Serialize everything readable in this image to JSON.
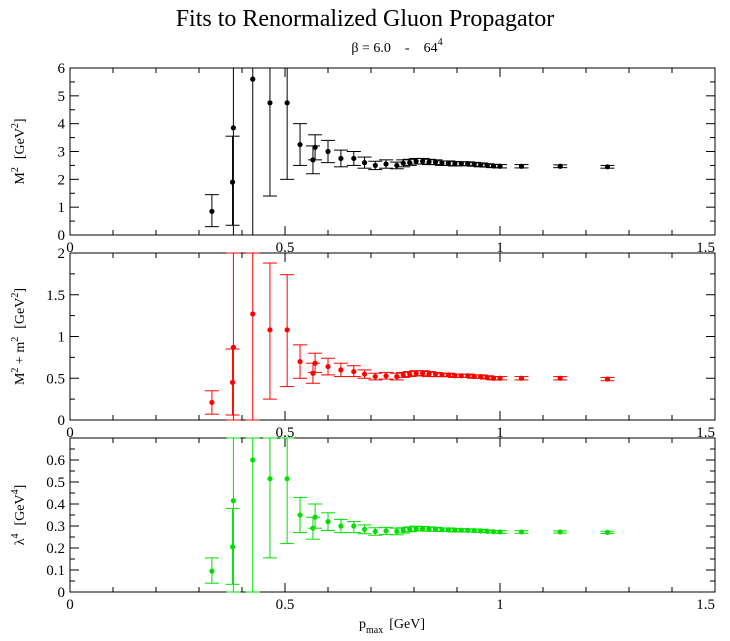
{
  "figure": {
    "title": "Fits to Renormalized Gluon Propagator",
    "subtitle_lhs": "β = 6.0",
    "subtitle_sep": "-",
    "subtitle_base": "64",
    "subtitle_exp": "4",
    "xlabel_main": "p",
    "xlabel_sub": "max",
    "xlabel_unit": "[GeV]"
  },
  "chart_data": [
    {
      "type": "scatter",
      "color": "#000000",
      "ylabel_text": "M",
      "ylabel_sup": "2",
      "ylabel_unit_pre": "[GeV",
      "ylabel_unit_sup": "2",
      "ylabel_unit_post": "]",
      "xlim": [
        0,
        1.5
      ],
      "ylim": [
        0,
        6
      ],
      "xticks": [
        "0",
        "0.5",
        "1",
        "1.5"
      ],
      "yticks": [
        "0",
        "1",
        "2",
        "3",
        "4",
        "5",
        "6"
      ],
      "grid": false,
      "points": [
        {
          "x": 0.33,
          "y": 0.85,
          "lo": 0.3,
          "hi": 1.45
        },
        {
          "x": 0.378,
          "y": 1.9,
          "lo": 0.35,
          "hi": 3.55
        },
        {
          "x": 0.38,
          "y": 3.85,
          "lo": 0.0,
          "hi": 6.0
        },
        {
          "x": 0.425,
          "y": 5.6,
          "lo": 0.0,
          "hi": 6.0
        },
        {
          "x": 0.465,
          "y": 4.75,
          "lo": 1.4,
          "hi": 6.0
        },
        {
          "x": 0.505,
          "y": 4.75,
          "lo": 2.0,
          "hi": 6.0
        },
        {
          "x": 0.535,
          "y": 3.25,
          "lo": 2.5,
          "hi": 4.0
        },
        {
          "x": 0.565,
          "y": 2.7,
          "lo": 2.2,
          "hi": 3.2
        },
        {
          "x": 0.57,
          "y": 3.15,
          "lo": 2.7,
          "hi": 3.6
        },
        {
          "x": 0.6,
          "y": 3.0,
          "lo": 2.6,
          "hi": 3.4
        },
        {
          "x": 0.63,
          "y": 2.75,
          "lo": 2.45,
          "hi": 3.05
        },
        {
          "x": 0.66,
          "y": 2.75,
          "lo": 2.5,
          "hi": 3.0
        },
        {
          "x": 0.685,
          "y": 2.6,
          "lo": 2.4,
          "hi": 2.8
        },
        {
          "x": 0.71,
          "y": 2.5,
          "lo": 2.35,
          "hi": 2.65
        },
        {
          "x": 0.735,
          "y": 2.55,
          "lo": 2.4,
          "hi": 2.7
        },
        {
          "x": 0.76,
          "y": 2.5,
          "lo": 2.38,
          "hi": 2.62
        },
        {
          "x": 0.775,
          "y": 2.58,
          "lo": 2.45,
          "hi": 2.7
        },
        {
          "x": 0.79,
          "y": 2.6,
          "lo": 2.5,
          "hi": 2.72
        },
        {
          "x": 0.805,
          "y": 2.65,
          "lo": 2.55,
          "hi": 2.75
        },
        {
          "x": 0.82,
          "y": 2.65,
          "lo": 2.55,
          "hi": 2.75
        },
        {
          "x": 0.835,
          "y": 2.62,
          "lo": 2.53,
          "hi": 2.72
        },
        {
          "x": 0.85,
          "y": 2.62,
          "lo": 2.53,
          "hi": 2.7
        },
        {
          "x": 0.865,
          "y": 2.58,
          "lo": 2.5,
          "hi": 2.66
        },
        {
          "x": 0.88,
          "y": 2.58,
          "lo": 2.5,
          "hi": 2.66
        },
        {
          "x": 0.895,
          "y": 2.56,
          "lo": 2.48,
          "hi": 2.64
        },
        {
          "x": 0.91,
          "y": 2.56,
          "lo": 2.49,
          "hi": 2.63
        },
        {
          "x": 0.925,
          "y": 2.56,
          "lo": 2.49,
          "hi": 2.63
        },
        {
          "x": 0.94,
          "y": 2.54,
          "lo": 2.47,
          "hi": 2.61
        },
        {
          "x": 0.955,
          "y": 2.52,
          "lo": 2.45,
          "hi": 2.59
        },
        {
          "x": 0.97,
          "y": 2.5,
          "lo": 2.44,
          "hi": 2.56
        },
        {
          "x": 0.985,
          "y": 2.48,
          "lo": 2.42,
          "hi": 2.54
        },
        {
          "x": 1.0,
          "y": 2.47,
          "lo": 2.41,
          "hi": 2.53
        },
        {
          "x": 1.05,
          "y": 2.47,
          "lo": 2.41,
          "hi": 2.53
        },
        {
          "x": 1.14,
          "y": 2.47,
          "lo": 2.42,
          "hi": 2.52
        },
        {
          "x": 1.25,
          "y": 2.45,
          "lo": 2.4,
          "hi": 2.5
        }
      ]
    },
    {
      "type": "scatter",
      "color": "#ff0000",
      "ylabel_text": "M",
      "ylabel_sup": "2",
      "ylabel_mid": " + m",
      "ylabel_sup2": "2",
      "ylabel_unit_pre": "[GeV",
      "ylabel_unit_sup": "2",
      "ylabel_unit_post": "]",
      "xlim": [
        0,
        1.5
      ],
      "ylim": [
        0,
        2
      ],
      "xticks": [
        "0",
        "0.5",
        "1",
        "1.5"
      ],
      "yticks": [
        "0",
        "0.5",
        "1",
        "1.5",
        "2"
      ],
      "grid": false,
      "points": [
        {
          "x": 0.33,
          "y": 0.21,
          "lo": 0.07,
          "hi": 0.35
        },
        {
          "x": 0.378,
          "y": 0.45,
          "lo": 0.06,
          "hi": 0.85
        },
        {
          "x": 0.38,
          "y": 0.87,
          "lo": 0.0,
          "hi": 2.0
        },
        {
          "x": 0.425,
          "y": 1.27,
          "lo": 0.0,
          "hi": 2.0
        },
        {
          "x": 0.465,
          "y": 1.08,
          "lo": 0.25,
          "hi": 1.88
        },
        {
          "x": 0.505,
          "y": 1.08,
          "lo": 0.4,
          "hi": 1.74
        },
        {
          "x": 0.535,
          "y": 0.7,
          "lo": 0.5,
          "hi": 0.9
        },
        {
          "x": 0.565,
          "y": 0.56,
          "lo": 0.44,
          "hi": 0.68
        },
        {
          "x": 0.57,
          "y": 0.68,
          "lo": 0.57,
          "hi": 0.8
        },
        {
          "x": 0.6,
          "y": 0.64,
          "lo": 0.54,
          "hi": 0.74
        },
        {
          "x": 0.63,
          "y": 0.6,
          "lo": 0.52,
          "hi": 0.68
        },
        {
          "x": 0.66,
          "y": 0.58,
          "lo": 0.52,
          "hi": 0.65
        },
        {
          "x": 0.685,
          "y": 0.55,
          "lo": 0.5,
          "hi": 0.6
        },
        {
          "x": 0.71,
          "y": 0.52,
          "lo": 0.48,
          "hi": 0.56
        },
        {
          "x": 0.735,
          "y": 0.53,
          "lo": 0.49,
          "hi": 0.57
        },
        {
          "x": 0.76,
          "y": 0.52,
          "lo": 0.48,
          "hi": 0.56
        },
        {
          "x": 0.775,
          "y": 0.54,
          "lo": 0.51,
          "hi": 0.57
        },
        {
          "x": 0.79,
          "y": 0.55,
          "lo": 0.52,
          "hi": 0.58
        },
        {
          "x": 0.805,
          "y": 0.56,
          "lo": 0.53,
          "hi": 0.59
        },
        {
          "x": 0.82,
          "y": 0.56,
          "lo": 0.53,
          "hi": 0.59
        },
        {
          "x": 0.835,
          "y": 0.55,
          "lo": 0.52,
          "hi": 0.58
        },
        {
          "x": 0.85,
          "y": 0.55,
          "lo": 0.52,
          "hi": 0.57
        },
        {
          "x": 0.865,
          "y": 0.54,
          "lo": 0.52,
          "hi": 0.56
        },
        {
          "x": 0.88,
          "y": 0.54,
          "lo": 0.52,
          "hi": 0.56
        },
        {
          "x": 0.895,
          "y": 0.53,
          "lo": 0.51,
          "hi": 0.55
        },
        {
          "x": 0.91,
          "y": 0.53,
          "lo": 0.51,
          "hi": 0.55
        },
        {
          "x": 0.925,
          "y": 0.53,
          "lo": 0.51,
          "hi": 0.55
        },
        {
          "x": 0.94,
          "y": 0.52,
          "lo": 0.5,
          "hi": 0.54
        },
        {
          "x": 0.955,
          "y": 0.52,
          "lo": 0.5,
          "hi": 0.54
        },
        {
          "x": 0.97,
          "y": 0.51,
          "lo": 0.49,
          "hi": 0.53
        },
        {
          "x": 0.985,
          "y": 0.5,
          "lo": 0.48,
          "hi": 0.52
        },
        {
          "x": 1.0,
          "y": 0.5,
          "lo": 0.48,
          "hi": 0.52
        },
        {
          "x": 1.05,
          "y": 0.5,
          "lo": 0.48,
          "hi": 0.52
        },
        {
          "x": 1.14,
          "y": 0.5,
          "lo": 0.48,
          "hi": 0.52
        },
        {
          "x": 1.25,
          "y": 0.49,
          "lo": 0.47,
          "hi": 0.51
        }
      ]
    },
    {
      "type": "scatter",
      "color": "#00e000",
      "ylabel_text": "λ",
      "ylabel_sup": "4",
      "ylabel_unit_pre": "[GeV",
      "ylabel_unit_sup": "4",
      "ylabel_unit_post": "]",
      "xlim": [
        0,
        1.5
      ],
      "ylim": [
        0,
        0.7
      ],
      "xticks": [
        "0",
        "0.5",
        "1",
        "1.5"
      ],
      "yticks": [
        "0",
        "0.1",
        "0.2",
        "0.3",
        "0.4",
        "0.5",
        "0.6"
      ],
      "grid": false,
      "points": [
        {
          "x": 0.33,
          "y": 0.095,
          "lo": 0.04,
          "hi": 0.155
        },
        {
          "x": 0.378,
          "y": 0.205,
          "lo": 0.035,
          "hi": 0.38
        },
        {
          "x": 0.38,
          "y": 0.415,
          "lo": 0.0,
          "hi": 0.7
        },
        {
          "x": 0.425,
          "y": 0.6,
          "lo": 0.0,
          "hi": 0.7
        },
        {
          "x": 0.465,
          "y": 0.515,
          "lo": 0.155,
          "hi": 0.7
        },
        {
          "x": 0.505,
          "y": 0.515,
          "lo": 0.22,
          "hi": 0.7
        },
        {
          "x": 0.535,
          "y": 0.35,
          "lo": 0.27,
          "hi": 0.43
        },
        {
          "x": 0.565,
          "y": 0.29,
          "lo": 0.24,
          "hi": 0.34
        },
        {
          "x": 0.57,
          "y": 0.34,
          "lo": 0.29,
          "hi": 0.4
        },
        {
          "x": 0.6,
          "y": 0.32,
          "lo": 0.28,
          "hi": 0.36
        },
        {
          "x": 0.63,
          "y": 0.3,
          "lo": 0.27,
          "hi": 0.33
        },
        {
          "x": 0.66,
          "y": 0.3,
          "lo": 0.27,
          "hi": 0.32
        },
        {
          "x": 0.685,
          "y": 0.285,
          "lo": 0.265,
          "hi": 0.305
        },
        {
          "x": 0.71,
          "y": 0.275,
          "lo": 0.258,
          "hi": 0.292
        },
        {
          "x": 0.735,
          "y": 0.278,
          "lo": 0.262,
          "hi": 0.294
        },
        {
          "x": 0.76,
          "y": 0.275,
          "lo": 0.26,
          "hi": 0.29
        },
        {
          "x": 0.775,
          "y": 0.28,
          "lo": 0.268,
          "hi": 0.292
        },
        {
          "x": 0.79,
          "y": 0.285,
          "lo": 0.274,
          "hi": 0.296
        },
        {
          "x": 0.805,
          "y": 0.288,
          "lo": 0.277,
          "hi": 0.299
        },
        {
          "x": 0.82,
          "y": 0.288,
          "lo": 0.278,
          "hi": 0.298
        },
        {
          "x": 0.835,
          "y": 0.286,
          "lo": 0.276,
          "hi": 0.296
        },
        {
          "x": 0.85,
          "y": 0.285,
          "lo": 0.276,
          "hi": 0.294
        },
        {
          "x": 0.865,
          "y": 0.283,
          "lo": 0.275,
          "hi": 0.291
        },
        {
          "x": 0.88,
          "y": 0.283,
          "lo": 0.275,
          "hi": 0.291
        },
        {
          "x": 0.895,
          "y": 0.281,
          "lo": 0.273,
          "hi": 0.289
        },
        {
          "x": 0.91,
          "y": 0.281,
          "lo": 0.274,
          "hi": 0.288
        },
        {
          "x": 0.925,
          "y": 0.28,
          "lo": 0.273,
          "hi": 0.287
        },
        {
          "x": 0.94,
          "y": 0.279,
          "lo": 0.272,
          "hi": 0.286
        },
        {
          "x": 0.955,
          "y": 0.278,
          "lo": 0.271,
          "hi": 0.285
        },
        {
          "x": 0.97,
          "y": 0.276,
          "lo": 0.27,
          "hi": 0.282
        },
        {
          "x": 0.985,
          "y": 0.274,
          "lo": 0.268,
          "hi": 0.28
        },
        {
          "x": 1.0,
          "y": 0.273,
          "lo": 0.267,
          "hi": 0.279
        },
        {
          "x": 1.05,
          "y": 0.273,
          "lo": 0.267,
          "hi": 0.279
        },
        {
          "x": 1.14,
          "y": 0.273,
          "lo": 0.268,
          "hi": 0.278
        },
        {
          "x": 1.25,
          "y": 0.271,
          "lo": 0.266,
          "hi": 0.276
        }
      ]
    }
  ]
}
